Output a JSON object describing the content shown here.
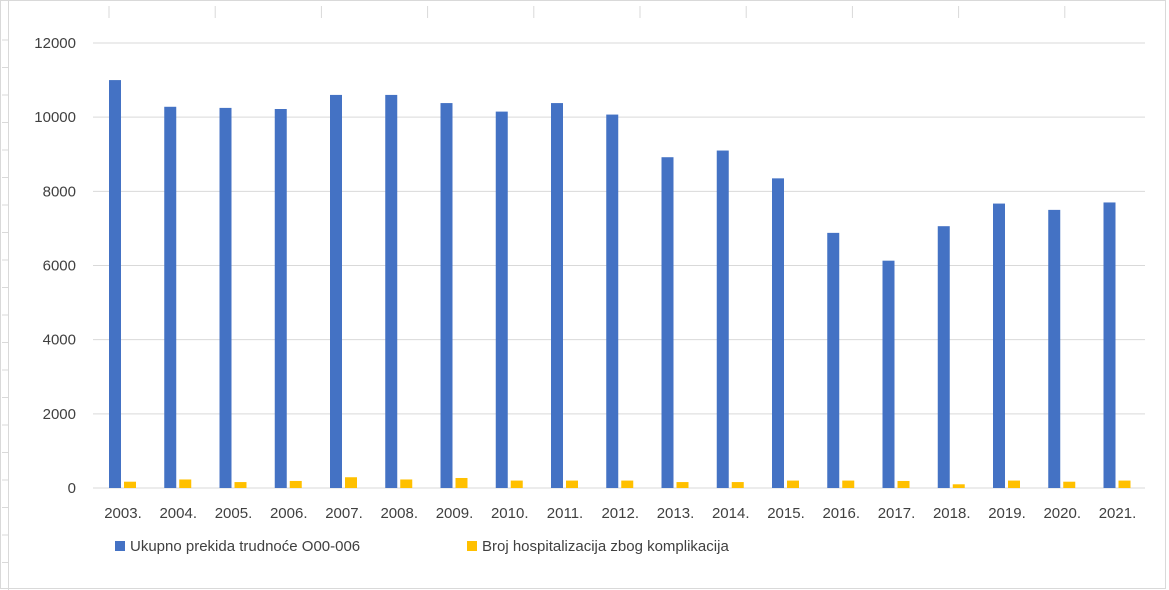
{
  "chart_data": {
    "type": "bar",
    "categories": [
      "2003.",
      "2004.",
      "2005.",
      "2006.",
      "2007.",
      "2008.",
      "2009.",
      "2010.",
      "2011.",
      "2012.",
      "2013.",
      "2014.",
      "2015.",
      "2016.",
      "2017.",
      "2018.",
      "2019.",
      "2020.",
      "2021."
    ],
    "series": [
      {
        "name": "Ukupno prekida trudnoće O00-006",
        "color": "#4472C4",
        "values": [
          11000,
          10280,
          10250,
          10220,
          10600,
          10600,
          10380,
          10150,
          10380,
          10070,
          8920,
          9100,
          8350,
          6880,
          6130,
          7060,
          7670,
          7500,
          7700
        ]
      },
      {
        "name": "Broj hospitalizacija zbog komplikacija",
        "color": "#FFC000",
        "values": [
          170,
          230,
          160,
          190,
          290,
          230,
          270,
          200,
          200,
          200,
          160,
          160,
          200,
          200,
          190,
          100,
          200,
          170,
          200
        ]
      }
    ],
    "y_ticks": [
      "0",
      "2000",
      "4000",
      "6000",
      "8000",
      "10000",
      "12000"
    ],
    "ylim": [
      0,
      12000
    ],
    "grid": true,
    "legend": "bottom-left",
    "title": "",
    "xlabel": "",
    "ylabel": ""
  }
}
